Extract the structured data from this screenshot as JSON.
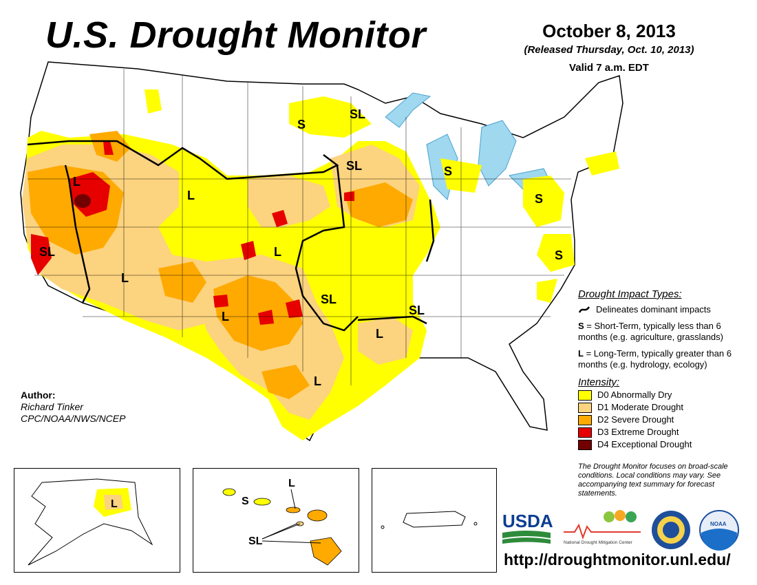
{
  "header": {
    "title": "U.S. Drought Monitor",
    "date": "October 8, 2013",
    "released": "(Released Thursday, Oct. 10, 2013)",
    "valid": "Valid 7 a.m. EDT"
  },
  "author": {
    "label": "Author:",
    "name": "Richard Tinker",
    "org": "CPC/NOAA/NWS/NCEP"
  },
  "legend": {
    "impact_heading": "Drought Impact Types:",
    "delineates": "Delineates dominant impacts",
    "short_code": "S",
    "short_text": "= Short-Term, typically less than 6 months (e.g. agriculture, grasslands)",
    "long_code": "L",
    "long_text": "= Long-Term, typically greater than 6 months (e.g. hydrology, ecology)",
    "intensity_heading": "Intensity:",
    "levels": [
      {
        "label": "D0 Abnormally Dry",
        "color": "#ffff00"
      },
      {
        "label": "D1 Moderate Drought",
        "color": "#fcd37f"
      },
      {
        "label": "D2 Severe Drought",
        "color": "#ffaa00"
      },
      {
        "label": "D3 Extreme Drought",
        "color": "#e60000"
      },
      {
        "label": "D4 Exceptional Drought",
        "color": "#730000"
      }
    ]
  },
  "map_labels": {
    "north_dakota": "S",
    "minnesota_north": "SL",
    "minnesota_south": "SL",
    "michigan": "S",
    "pennsylvania": "S",
    "chesapeake": "S",
    "nevada": "L",
    "montana": "L",
    "california": "SL",
    "colorado": "L",
    "utah": "L",
    "kansas": "SL",
    "mississippi": "SL",
    "new_mexico": "L",
    "arkansas": "L",
    "texas": "L",
    "alaska": "L",
    "hawaii_top": "L",
    "hawaii_s": "S",
    "hawaii_sl": "SL"
  },
  "note": "The Drought Monitor focuses on broad-scale conditions. Local conditions may vary. See accompanying text summary for forecast statements.",
  "logos": {
    "usda": "USDA",
    "ndmc": "National Drought Mitigation Center",
    "noaa": "NOAA"
  },
  "url": "http://droughtmonitor.unl.edu/"
}
